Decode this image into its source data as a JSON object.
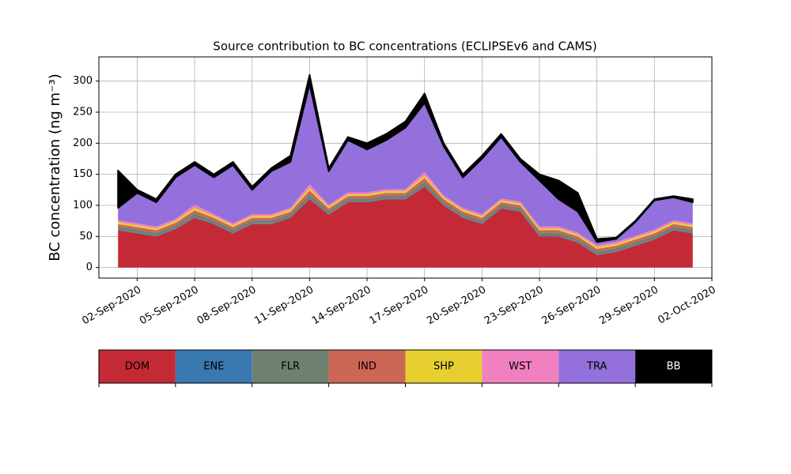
{
  "chart_data": {
    "type": "stacked_area",
    "title": "Source contribution to BC concentrations (ECLIPSEv6 and CAMS)",
    "ylabel": "BC concentration (ng m⁻³)",
    "x": [
      "2020-09-01",
      "2020-09-02",
      "2020-09-03",
      "2020-09-04",
      "2020-09-05",
      "2020-09-06",
      "2020-09-07",
      "2020-09-08",
      "2020-09-09",
      "2020-09-10",
      "2020-09-11",
      "2020-09-12",
      "2020-09-13",
      "2020-09-14",
      "2020-09-15",
      "2020-09-16",
      "2020-09-17",
      "2020-09-18",
      "2020-09-19",
      "2020-09-20",
      "2020-09-21",
      "2020-09-22",
      "2020-09-23",
      "2020-09-24",
      "2020-09-25",
      "2020-09-26",
      "2020-09-27",
      "2020-09-28",
      "2020-09-29",
      "2020-09-30",
      "2020-10-01"
    ],
    "series": [
      {
        "name": "DOM",
        "color": "#c42a35",
        "values": [
          60,
          55,
          50,
          62,
          80,
          70,
          55,
          70,
          70,
          80,
          110,
          85,
          105,
          105,
          110,
          110,
          130,
          100,
          80,
          70,
          95,
          90,
          50,
          50,
          40,
          20,
          25,
          35,
          45,
          60,
          55
        ]
      },
      {
        "name": "ENE",
        "color": "#3a78b0",
        "values": [
          1,
          1,
          1,
          1,
          1,
          1,
          1,
          1,
          1,
          1,
          1,
          1,
          1,
          1,
          1,
          1,
          1,
          1,
          1,
          1,
          1,
          1,
          1,
          1,
          1,
          1,
          1,
          1,
          1,
          1,
          1
        ]
      },
      {
        "name": "FLR",
        "color": "#6e8070",
        "values": [
          5,
          5,
          5,
          5,
          6,
          5,
          5,
          5,
          5,
          5,
          7,
          5,
          5,
          5,
          5,
          5,
          7,
          5,
          5,
          5,
          5,
          5,
          5,
          5,
          5,
          5,
          5,
          5,
          5,
          5,
          5
        ]
      },
      {
        "name": "IND",
        "color": "#cc6655",
        "values": [
          4,
          4,
          4,
          4,
          5,
          4,
          4,
          4,
          4,
          4,
          6,
          4,
          4,
          4,
          4,
          4,
          6,
          4,
          4,
          4,
          4,
          4,
          4,
          4,
          4,
          4,
          4,
          4,
          4,
          4,
          4
        ]
      },
      {
        "name": "SHP",
        "color": "#e8cf30",
        "values": [
          3,
          3,
          3,
          3,
          4,
          3,
          3,
          3,
          3,
          3,
          4,
          3,
          3,
          3,
          3,
          3,
          4,
          3,
          3,
          3,
          3,
          3,
          3,
          3,
          3,
          3,
          3,
          3,
          3,
          3,
          3
        ]
      },
      {
        "name": "WST",
        "color": "#f080c0",
        "values": [
          3,
          3,
          3,
          3,
          5,
          3,
          3,
          3,
          3,
          3,
          6,
          3,
          3,
          3,
          3,
          3,
          6,
          3,
          3,
          3,
          3,
          3,
          3,
          3,
          3,
          3,
          3,
          3,
          3,
          3,
          3
        ]
      },
      {
        "name": "TRA",
        "color": "#9370db",
        "values": [
          20,
          49,
          39,
          67,
          64,
          59,
          94,
          39,
          69,
          74,
          161,
          54,
          84,
          69,
          79,
          99,
          111,
          79,
          49,
          89,
          99,
          64,
          74,
          44,
          34,
          5,
          5,
          22,
          47,
          37,
          34
        ]
      },
      {
        "name": "BB",
        "color": "#000000",
        "values": [
          60,
          5,
          5,
          5,
          5,
          5,
          5,
          5,
          5,
          10,
          15,
          5,
          5,
          10,
          10,
          10,
          15,
          5,
          5,
          5,
          5,
          5,
          10,
          30,
          30,
          5,
          2,
          2,
          2,
          2,
          5
        ]
      }
    ],
    "xlim": [
      "2020-08-31",
      "2020-10-02"
    ],
    "xticks": [
      {
        "value": "2020-09-02",
        "label": "02-Sep-2020"
      },
      {
        "value": "2020-09-05",
        "label": "05-Sep-2020"
      },
      {
        "value": "2020-09-08",
        "label": "08-Sep-2020"
      },
      {
        "value": "2020-09-11",
        "label": "11-Sep-2020"
      },
      {
        "value": "2020-09-14",
        "label": "14-Sep-2020"
      },
      {
        "value": "2020-09-17",
        "label": "17-Sep-2020"
      },
      {
        "value": "2020-09-20",
        "label": "20-Sep-2020"
      },
      {
        "value": "2020-09-23",
        "label": "23-Sep-2020"
      },
      {
        "value": "2020-09-26",
        "label": "26-Sep-2020"
      },
      {
        "value": "2020-09-29",
        "label": "29-Sep-2020"
      },
      {
        "value": "2020-10-02",
        "label": "02-Oct-2020"
      }
    ],
    "ylim": [
      -17,
      339
    ],
    "yticks": [
      0,
      50,
      100,
      150,
      200,
      250,
      300
    ],
    "grid": true
  }
}
